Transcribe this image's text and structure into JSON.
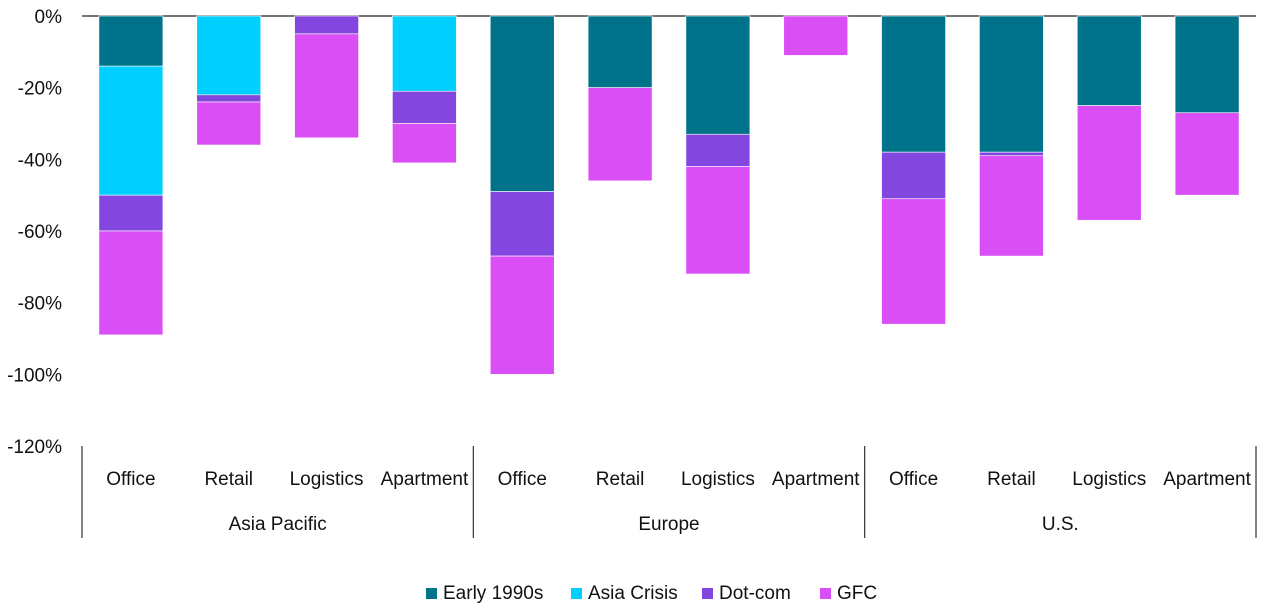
{
  "chart_data": {
    "type": "bar",
    "stacked": true,
    "groups": [
      {
        "name": "Asia Pacific",
        "categories": [
          "Office",
          "Retail",
          "Logistics",
          "Apartment"
        ]
      },
      {
        "name": "Europe",
        "categories": [
          "Office",
          "Retail",
          "Logistics",
          "Apartment"
        ]
      },
      {
        "name": "U.S.",
        "categories": [
          "Office",
          "Retail",
          "Logistics",
          "Apartment"
        ]
      }
    ],
    "series": [
      {
        "name": "Early 1990s",
        "color": "#00738a",
        "values": [
          -14,
          0,
          0,
          0,
          -49,
          -20,
          -33,
          0,
          -38,
          -38,
          -25,
          -27
        ]
      },
      {
        "name": "Asia Crisis",
        "color": "#00cfff",
        "values": [
          -36,
          -22,
          0,
          -21,
          0,
          0,
          0,
          0,
          0,
          0,
          0,
          0
        ]
      },
      {
        "name": "Dot-com",
        "color": "#8347e0",
        "values": [
          -10,
          -2,
          -5,
          -9,
          -18,
          0,
          -9,
          0,
          -13,
          -1,
          0,
          0
        ]
      },
      {
        "name": "GFC",
        "color": "#d94ff5",
        "values": [
          -29,
          -12,
          -29,
          -11,
          -33,
          -26,
          -30,
          -11,
          -35,
          -28,
          -32,
          -23
        ]
      }
    ],
    "y_ticks": [
      "0%",
      "-20%",
      "-40%",
      "-60%",
      "-80%",
      "-100%",
      "-120%"
    ],
    "ylim": [
      -120,
      0
    ],
    "grid": false,
    "legend_position": "bottom-center"
  }
}
